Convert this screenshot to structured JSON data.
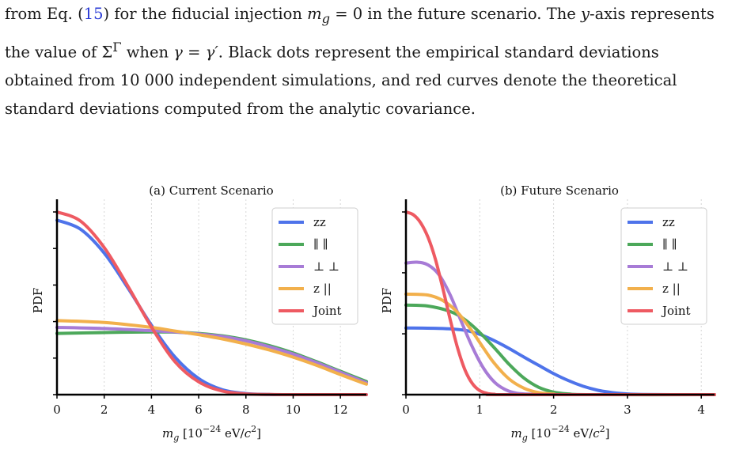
{
  "caption": {
    "line1_a": "from Eq. (",
    "line1_ref": "15",
    "line1_b": ") for the fiducial injection ",
    "line1_mg": "m",
    "line1_mg_sub": "g",
    "line1_c": " = 0 in the future scenario. The ",
    "line1_y": "y",
    "line1_d": "-axis represents",
    "line2_a": "the value of Σ",
    "line2_sup": "Γ",
    "line2_b": " when ",
    "line2_gamma": "γ",
    "line2_c": " = ",
    "line2_gamma2": "γ′",
    "line2_d": ". Black dots represent the empirical standard deviations",
    "line3": "obtained from 10 000 independent simulations, and red curves denote the theoretical",
    "line4": "standard deviations computed from the analytic covariance."
  },
  "chart_data": [
    {
      "type": "line",
      "title": "(a) Current Scenario",
      "xlabel_symbol": "m",
      "xlabel_sub": "g",
      "xlabel_unit_pre": "[10",
      "xlabel_exp": "−24",
      "xlabel_unit_mid": " eV/",
      "xlabel_c": "c",
      "xlabel_c_exp": "2",
      "xlabel_unit_post": "]",
      "ylabel": "PDF",
      "xlim": [
        0,
        13.1
      ],
      "ylim": [
        0,
        1.0
      ],
      "xticks": [
        0,
        2,
        4,
        6,
        8,
        10,
        12
      ],
      "xtick_labels": [
        "0",
        "2",
        "4",
        "6",
        "8",
        "10",
        "12"
      ],
      "yticks": [
        0,
        0.2,
        0.4,
        0.6,
        0.8,
        1.0
      ],
      "grid_x": true,
      "legend": "top-right",
      "series": [
        {
          "name": "zz",
          "color": "#4e73ea",
          "x": [
            0,
            1,
            2,
            3,
            4,
            5,
            6,
            7,
            8,
            9,
            10,
            13.1
          ],
          "y": [
            0.955,
            0.905,
            0.775,
            0.585,
            0.38,
            0.205,
            0.088,
            0.027,
            0.006,
            0.001,
            0,
            0
          ]
        },
        {
          "name": "∥ ∥",
          "color": "#4ca85a",
          "x": [
            0,
            2,
            4,
            5,
            6,
            7,
            8,
            9,
            10,
            11,
            12,
            13.1
          ],
          "y": [
            0.335,
            0.34,
            0.343,
            0.342,
            0.335,
            0.322,
            0.3,
            0.268,
            0.228,
            0.18,
            0.128,
            0.072
          ]
        },
        {
          "name": "⊥ ⊥",
          "color": "#a77bd6",
          "x": [
            0,
            2,
            4,
            5,
            6,
            7,
            8,
            9,
            10,
            11,
            12,
            13.1
          ],
          "y": [
            0.368,
            0.362,
            0.35,
            0.343,
            0.332,
            0.318,
            0.295,
            0.262,
            0.222,
            0.175,
            0.123,
            0.065
          ]
        },
        {
          "name": "z ||",
          "color": "#f2b04c",
          "x": [
            0,
            2,
            4,
            5,
            6,
            7,
            8,
            9,
            10,
            11,
            12,
            13.1
          ],
          "y": [
            0.405,
            0.395,
            0.368,
            0.348,
            0.328,
            0.305,
            0.277,
            0.244,
            0.205,
            0.16,
            0.11,
            0.057
          ]
        },
        {
          "name": "Joint",
          "color": "#ee5a62",
          "x": [
            0,
            1,
            2,
            3,
            4,
            5,
            6,
            7,
            8,
            9,
            10,
            13.1
          ],
          "y": [
            1.0,
            0.95,
            0.805,
            0.595,
            0.37,
            0.18,
            0.07,
            0.02,
            0.004,
            0.001,
            0,
            0
          ]
        }
      ]
    },
    {
      "type": "line",
      "title": "(b) Future Scenario",
      "xlabel_symbol": "m",
      "xlabel_sub": "g",
      "xlabel_unit_pre": "[10",
      "xlabel_exp": "−24",
      "xlabel_unit_mid": " eV/",
      "xlabel_c": "c",
      "xlabel_c_exp": "2",
      "xlabel_unit_post": "]",
      "ylabel": "PDF",
      "xlim": [
        0,
        4.18
      ],
      "ylim": [
        0,
        1.0
      ],
      "xticks": [
        0,
        1,
        2,
        3,
        4
      ],
      "xtick_labels": [
        "0",
        "1",
        "2",
        "3",
        "4"
      ],
      "yticks": [
        0,
        0.333,
        0.667,
        1.0
      ],
      "grid_x": true,
      "legend": "top-right",
      "series": [
        {
          "name": "zz",
          "color": "#4e73ea",
          "x": [
            0,
            0.5,
            0.8,
            1.0,
            1.2,
            1.4,
            1.6,
            1.8,
            2.0,
            2.2,
            2.4,
            2.6,
            2.8,
            3.0,
            3.2,
            3.6,
            4.18
          ],
          "y": [
            0.365,
            0.362,
            0.352,
            0.33,
            0.295,
            0.252,
            0.205,
            0.16,
            0.115,
            0.077,
            0.046,
            0.024,
            0.011,
            0.004,
            0.001,
            0,
            0
          ]
        },
        {
          "name": "∥ ∥",
          "color": "#4ca85a",
          "x": [
            0,
            0.3,
            0.6,
            0.8,
            1.0,
            1.2,
            1.4,
            1.6,
            1.8,
            2.0,
            2.2,
            2.5,
            4.18
          ],
          "y": [
            0.49,
            0.485,
            0.455,
            0.41,
            0.34,
            0.255,
            0.165,
            0.09,
            0.04,
            0.014,
            0.004,
            0,
            0
          ]
        },
        {
          "name": "⊥ ⊥",
          "color": "#a77bd6",
          "x": [
            0,
            0.15,
            0.3,
            0.45,
            0.6,
            0.75,
            0.9,
            1.05,
            1.2,
            1.35,
            1.5,
            1.7,
            2.0,
            4.18
          ],
          "y": [
            0.72,
            0.725,
            0.71,
            0.655,
            0.545,
            0.4,
            0.26,
            0.145,
            0.068,
            0.027,
            0.008,
            0.002,
            0,
            0
          ]
        },
        {
          "name": "z ||",
          "color": "#f2b04c",
          "x": [
            0,
            0.3,
            0.5,
            0.7,
            0.9,
            1.05,
            1.2,
            1.4,
            1.6,
            1.8,
            2.0,
            2.2,
            4.18
          ],
          "y": [
            0.55,
            0.545,
            0.515,
            0.45,
            0.345,
            0.255,
            0.17,
            0.085,
            0.035,
            0.011,
            0.003,
            0,
            0
          ]
        },
        {
          "name": "Joint",
          "color": "#ee5a62",
          "x": [
            0,
            0.1,
            0.2,
            0.3,
            0.4,
            0.5,
            0.6,
            0.7,
            0.8,
            0.9,
            1.0,
            1.1,
            1.2,
            1.35,
            4.18
          ],
          "y": [
            1.0,
            0.985,
            0.94,
            0.86,
            0.74,
            0.58,
            0.41,
            0.255,
            0.135,
            0.06,
            0.022,
            0.007,
            0.002,
            0,
            0
          ]
        }
      ]
    }
  ]
}
